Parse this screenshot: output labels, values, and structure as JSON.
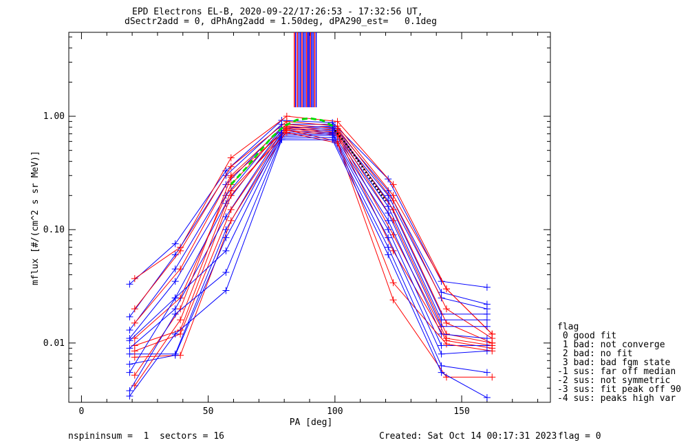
{
  "title_line1": "EPD Electrons EL-B, 2020-09-22/17:26:53 - 17:32:56 UT,",
  "title_line2": "dSectr2add = 0, dPhAng2add = 1.50deg, dPA290_est=   0.1deg",
  "footer": {
    "left": "nspininsum =  1  sectors = 16",
    "created": "Created: Sat Oct 14 00:17:31 2023",
    "flag": "flag = 0"
  },
  "legend": {
    "title": "flag",
    "items": [
      " 0 good fit",
      " 1 bad: not converge",
      " 2 bad: no fit",
      " 3 bad: bad fgm state",
      "-1 sus: far off median",
      "-2 sus: not symmetric",
      "-3 sus: fit peak off 90",
      "-4 sus: peaks high var"
    ]
  },
  "chart_data": {
    "type": "line",
    "xlabel": "PA [deg]",
    "ylabel": "mflux [#/(cm^2 s sr MeV)]",
    "xlim": [
      -5,
      185
    ],
    "ylim": [
      0.003,
      5.5
    ],
    "y_scale": "log",
    "xticks": [
      0,
      50,
      100,
      150
    ],
    "xtick_labels": [
      "0",
      "50",
      "100",
      "150"
    ],
    "yticks": [
      0.01,
      0.1,
      1.0
    ],
    "ytick_labels": [
      "0.01",
      "0.10",
      "1.00"
    ],
    "colors": {
      "red": "#ff0000",
      "blue": "#0000ff",
      "fit_green": "#00dd00",
      "fit_black": "#000000"
    },
    "marker": "plus",
    "series": [
      {
        "color": "blue",
        "x": [
          19,
          37,
          57,
          79,
          99,
          121,
          142,
          160
        ],
        "y": [
          0.033,
          0.075,
          0.33,
          0.92,
          0.88,
          0.28,
          0.035,
          0.031
        ]
      },
      {
        "color": "red",
        "x": [
          21,
          39,
          59,
          81,
          101,
          123,
          144,
          162
        ],
        "y": [
          0.037,
          0.07,
          0.43,
          1.0,
          0.9,
          0.25,
          0.03,
          0.012
        ]
      },
      {
        "color": "blue",
        "x": [
          19,
          37,
          57,
          79,
          99,
          121,
          142,
          160
        ],
        "y": [
          0.017,
          0.06,
          0.3,
          0.85,
          0.85,
          0.22,
          0.028,
          0.022
        ]
      },
      {
        "color": "red",
        "x": [
          21,
          39,
          59,
          81,
          101,
          123,
          144,
          162
        ],
        "y": [
          0.02,
          0.065,
          0.36,
          0.9,
          0.82,
          0.2,
          0.03,
          0.012
        ]
      },
      {
        "color": "blue",
        "x": [
          19,
          37,
          57,
          79,
          99,
          121,
          142,
          160
        ],
        "y": [
          0.013,
          0.045,
          0.25,
          0.8,
          0.8,
          0.2,
          0.025,
          0.02
        ]
      },
      {
        "color": "red",
        "x": [
          21,
          39,
          59,
          81,
          101,
          123,
          144,
          162
        ],
        "y": [
          0.015,
          0.045,
          0.3,
          0.85,
          0.78,
          0.18,
          0.02,
          0.011
        ]
      },
      {
        "color": "blue",
        "x": [
          19,
          37,
          57,
          79,
          99,
          121,
          142,
          160
        ],
        "y": [
          0.011,
          0.035,
          0.2,
          0.78,
          0.82,
          0.18,
          0.018,
          0.018
        ]
      },
      {
        "color": "red",
        "x": [
          21,
          39,
          59,
          81,
          101,
          123,
          144,
          162
        ],
        "y": [
          0.011,
          0.025,
          0.25,
          0.82,
          0.75,
          0.15,
          0.015,
          0.01
        ]
      },
      {
        "color": "blue",
        "x": [
          19,
          37,
          57,
          79,
          99,
          121,
          142,
          160
        ],
        "y": [
          0.0105,
          0.025,
          0.17,
          0.75,
          0.78,
          0.16,
          0.016,
          0.016
        ]
      },
      {
        "color": "red",
        "x": [
          21,
          39,
          59,
          81,
          101,
          123,
          144,
          162
        ],
        "y": [
          0.0095,
          0.013,
          0.2,
          0.8,
          0.72,
          0.12,
          0.012,
          0.01
        ]
      },
      {
        "color": "blue",
        "x": [
          19,
          37,
          57,
          79,
          99,
          121,
          142,
          160
        ],
        "y": [
          0.009,
          0.02,
          0.13,
          0.72,
          0.75,
          0.14,
          0.014,
          0.014
        ]
      },
      {
        "color": "red",
        "x": [
          21,
          39,
          59,
          81,
          101,
          123,
          144,
          162
        ],
        "y": [
          0.0085,
          0.012,
          0.15,
          0.78,
          0.7,
          0.09,
          0.011,
          0.0095
        ]
      },
      {
        "color": "blue",
        "x": [
          19,
          37,
          57,
          79,
          99,
          121,
          142,
          160
        ],
        "y": [
          0.008,
          0.008,
          0.1,
          0.7,
          0.72,
          0.12,
          0.012,
          0.011
        ]
      },
      {
        "color": "red",
        "x": [
          21,
          39,
          59,
          81,
          101,
          123,
          144,
          162
        ],
        "y": [
          0.0075,
          0.0078,
          0.12,
          0.75,
          0.68,
          0.065,
          0.0105,
          0.009
        ]
      },
      {
        "color": "blue",
        "x": [
          19,
          37,
          57,
          79,
          99,
          121,
          142,
          160
        ],
        "y": [
          0.0065,
          0.0078,
          0.085,
          0.68,
          0.7,
          0.1,
          0.0095,
          0.0095
        ]
      },
      {
        "color": "red",
        "x": [
          21,
          39,
          59,
          81,
          101,
          123,
          144,
          162
        ],
        "y": [
          0.0052,
          0.02,
          0.29,
          0.76,
          0.6,
          0.034,
          0.0098,
          0.0085
        ]
      },
      {
        "color": "blue",
        "x": [
          19,
          37,
          57,
          79,
          99,
          121,
          142,
          160
        ],
        "y": [
          0.0055,
          0.025,
          0.065,
          0.66,
          0.68,
          0.085,
          0.008,
          0.0085
        ]
      },
      {
        "color": "red",
        "x": [
          21,
          39,
          59,
          81,
          101,
          123,
          144,
          162
        ],
        "y": [
          0.0042,
          0.016,
          0.22,
          0.72,
          0.58,
          0.024,
          0.005,
          0.005
        ]
      },
      {
        "color": "blue",
        "x": [
          19,
          37,
          57,
          79,
          99,
          121,
          142,
          160
        ],
        "y": [
          0.0038,
          0.018,
          0.042,
          0.64,
          0.65,
          0.07,
          0.0063,
          0.0055
        ]
      },
      {
        "color": "blue",
        "x": [
          19,
          37,
          57,
          79,
          99,
          121,
          142,
          160
        ],
        "y": [
          0.0034,
          0.012,
          0.029,
          0.62,
          0.62,
          0.06,
          0.0055,
          0.0033
        ]
      }
    ],
    "fit_curves": [
      {
        "color": "fit_green",
        "style": "dashed",
        "x": [
          59,
          65,
          70,
          75,
          80,
          85,
          90,
          95,
          100
        ],
        "y": [
          0.25,
          0.35,
          0.48,
          0.65,
          0.82,
          0.93,
          0.96,
          0.92,
          0.8
        ]
      },
      {
        "color": "fit_black",
        "style": "dotted",
        "x": [
          100,
          105,
          110,
          115,
          120
        ],
        "y": [
          0.75,
          0.55,
          0.38,
          0.26,
          0.18
        ]
      }
    ],
    "vertical_lines": {
      "y_from": 1.2,
      "y_to": 5.5,
      "items": [
        {
          "x": 84.0,
          "color": "red"
        },
        {
          "x": 84.5,
          "color": "blue"
        },
        {
          "x": 85.2,
          "color": "red"
        },
        {
          "x": 85.8,
          "color": "blue"
        },
        {
          "x": 86.4,
          "color": "blue"
        },
        {
          "x": 87.0,
          "color": "red"
        },
        {
          "x": 87.6,
          "color": "blue"
        },
        {
          "x": 88.2,
          "color": "blue"
        },
        {
          "x": 88.8,
          "color": "red"
        },
        {
          "x": 89.3,
          "color": "blue"
        },
        {
          "x": 89.8,
          "color": "blue"
        },
        {
          "x": 90.3,
          "color": "red"
        },
        {
          "x": 90.8,
          "color": "blue"
        },
        {
          "x": 91.4,
          "color": "blue"
        },
        {
          "x": 92.0,
          "color": "red"
        },
        {
          "x": 92.6,
          "color": "blue"
        }
      ]
    }
  }
}
